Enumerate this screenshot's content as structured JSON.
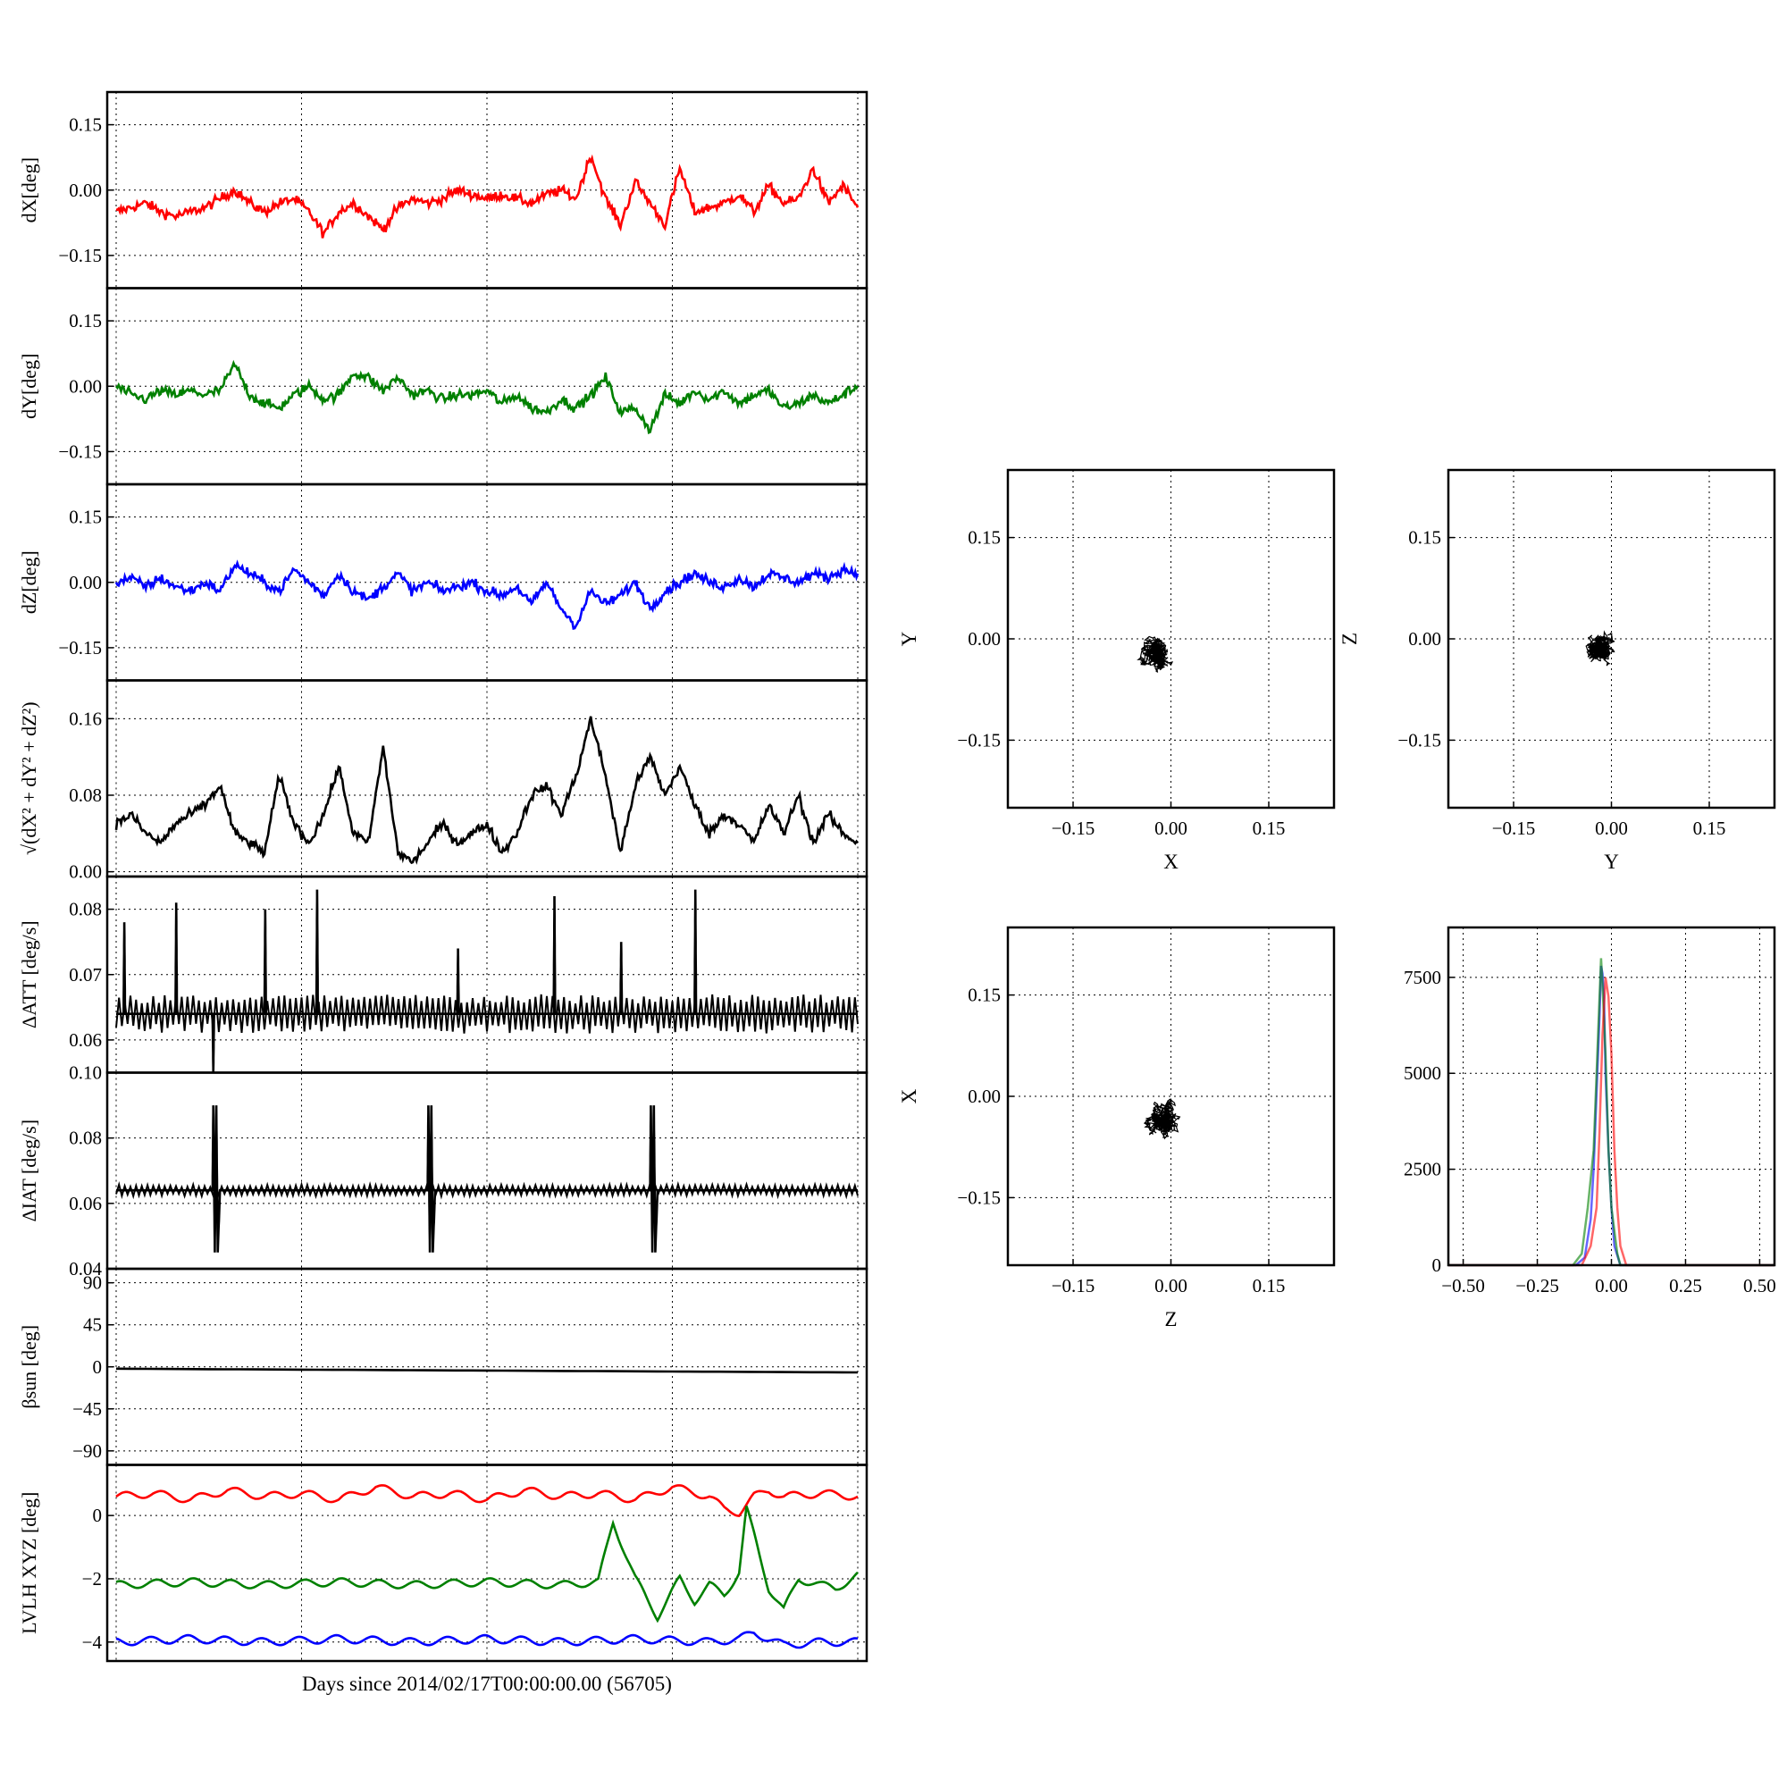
{
  "xlabel_bottom": "Days since 2014/02/17T00:00:00.00 (56705)",
  "colors": {
    "x": "#ff0000",
    "y": "#008000",
    "z": "#0000ff",
    "mag": "#000000"
  },
  "chart_data": [
    {
      "id": "dx",
      "type": "line",
      "ylabel": "dX[deg]",
      "ylim": [
        -0.225,
        0.225
      ],
      "yticks": [
        0.15,
        0.0,
        -0.15
      ],
      "yticklabels": [
        "0.15",
        "0.00",
        "−0.15"
      ],
      "series": [
        {
          "color": "#ff0000",
          "x": [
            0,
            0.02,
            0.04,
            0.06,
            0.08,
            0.1,
            0.12,
            0.14,
            0.16,
            0.18,
            0.2,
            0.22,
            0.24,
            0.26,
            0.28,
            0.3,
            0.32,
            0.34,
            0.36,
            0.38,
            0.4,
            0.42,
            0.44,
            0.46,
            0.48,
            0.5,
            0.52,
            0.54,
            0.56,
            0.58,
            0.6,
            0.62,
            0.64,
            0.66,
            0.68,
            0.7,
            0.72,
            0.74,
            0.76,
            0.78,
            0.8,
            0.82,
            0.84,
            0.86,
            0.88,
            0.9,
            0.92,
            0.94,
            0.96,
            0.98,
            1.0
          ],
          "y": [
            -0.05,
            -0.04,
            -0.03,
            -0.05,
            -0.06,
            -0.05,
            -0.04,
            -0.02,
            0.0,
            -0.03,
            -0.05,
            -0.03,
            -0.02,
            -0.05,
            -0.1,
            -0.05,
            -0.03,
            -0.06,
            -0.09,
            -0.04,
            -0.02,
            -0.03,
            -0.02,
            0.0,
            -0.01,
            -0.02,
            -0.01,
            -0.02,
            -0.03,
            -0.01,
            0.0,
            -0.02,
            0.08,
            -0.02,
            -0.08,
            0.02,
            -0.03,
            -0.08,
            0.05,
            -0.05,
            -0.04,
            -0.03,
            -0.01,
            -0.05,
            0.01,
            -0.03,
            -0.02,
            0.05,
            -0.03,
            0.01,
            -0.04
          ]
        }
      ]
    },
    {
      "id": "dy",
      "type": "line",
      "ylabel": "dY[deg]",
      "ylim": [
        -0.225,
        0.225
      ],
      "yticks": [
        0.15,
        0.0,
        -0.15
      ],
      "yticklabels": [
        "0.15",
        "0.00",
        "−0.15"
      ],
      "series": [
        {
          "color": "#008000",
          "x": [
            0,
            0.02,
            0.04,
            0.06,
            0.08,
            0.1,
            0.12,
            0.14,
            0.16,
            0.18,
            0.2,
            0.22,
            0.24,
            0.26,
            0.28,
            0.3,
            0.32,
            0.34,
            0.36,
            0.38,
            0.4,
            0.42,
            0.44,
            0.46,
            0.48,
            0.5,
            0.52,
            0.54,
            0.56,
            0.58,
            0.6,
            0.62,
            0.64,
            0.66,
            0.68,
            0.7,
            0.72,
            0.74,
            0.76,
            0.78,
            0.8,
            0.82,
            0.84,
            0.86,
            0.88,
            0.9,
            0.92,
            0.94,
            0.96,
            0.98,
            1.0
          ],
          "y": [
            0.0,
            -0.02,
            -0.03,
            -0.01,
            -0.02,
            -0.01,
            -0.02,
            -0.01,
            0.05,
            -0.02,
            -0.04,
            -0.05,
            -0.02,
            0.0,
            -0.03,
            -0.02,
            0.03,
            0.02,
            -0.01,
            0.02,
            -0.02,
            -0.01,
            -0.03,
            -0.02,
            -0.02,
            -0.01,
            -0.04,
            -0.02,
            -0.05,
            -0.06,
            -0.03,
            -0.05,
            -0.02,
            0.02,
            -0.06,
            -0.05,
            -0.1,
            -0.02,
            -0.04,
            -0.01,
            -0.03,
            -0.01,
            -0.04,
            -0.02,
            -0.01,
            -0.05,
            -0.04,
            -0.02,
            -0.04,
            -0.02,
            0.0
          ]
        }
      ]
    },
    {
      "id": "dz",
      "type": "line",
      "ylabel": "dZ[deg]",
      "ylim": [
        -0.225,
        0.225
      ],
      "yticks": [
        0.15,
        0.0,
        -0.15
      ],
      "yticklabels": [
        "0.15",
        "0.00",
        "−0.15"
      ],
      "series": [
        {
          "color": "#0000ff",
          "x": [
            0,
            0.02,
            0.04,
            0.06,
            0.08,
            0.1,
            0.12,
            0.14,
            0.16,
            0.18,
            0.2,
            0.22,
            0.24,
            0.26,
            0.28,
            0.3,
            0.32,
            0.34,
            0.36,
            0.38,
            0.4,
            0.42,
            0.44,
            0.46,
            0.48,
            0.5,
            0.52,
            0.54,
            0.56,
            0.58,
            0.6,
            0.62,
            0.64,
            0.66,
            0.68,
            0.7,
            0.72,
            0.74,
            0.76,
            0.78,
            0.8,
            0.82,
            0.84,
            0.86,
            0.88,
            0.9,
            0.92,
            0.94,
            0.96,
            0.98,
            1.0
          ],
          "y": [
            0.0,
            0.01,
            -0.01,
            0.01,
            -0.01,
            -0.02,
            0.0,
            -0.02,
            0.04,
            0.02,
            0.0,
            -0.02,
            0.03,
            0.0,
            -0.03,
            0.02,
            -0.02,
            -0.04,
            -0.01,
            0.02,
            -0.02,
            0.0,
            -0.02,
            -0.01,
            0.0,
            -0.02,
            -0.03,
            -0.01,
            -0.05,
            0.0,
            -0.06,
            -0.1,
            -0.02,
            -0.05,
            -0.03,
            0.0,
            -0.06,
            -0.02,
            0.0,
            0.02,
            0.0,
            -0.01,
            0.01,
            -0.01,
            0.02,
            0.01,
            0.0,
            0.02,
            0.01,
            0.03,
            0.02
          ]
        }
      ]
    },
    {
      "id": "mag",
      "type": "line",
      "ylabel": "√(dX² + dY² + dZ²)",
      "ylim": [
        -0.005,
        0.2
      ],
      "yticks": [
        0.16,
        0.08,
        0.0
      ],
      "yticklabels": [
        "0.16",
        "0.08",
        "0.00"
      ],
      "series": [
        {
          "color": "#000000",
          "x": [
            0,
            0.02,
            0.04,
            0.06,
            0.08,
            0.1,
            0.12,
            0.14,
            0.16,
            0.18,
            0.2,
            0.22,
            0.24,
            0.26,
            0.28,
            0.3,
            0.32,
            0.34,
            0.36,
            0.38,
            0.4,
            0.42,
            0.44,
            0.46,
            0.48,
            0.5,
            0.52,
            0.54,
            0.56,
            0.58,
            0.6,
            0.62,
            0.64,
            0.66,
            0.68,
            0.7,
            0.72,
            0.74,
            0.76,
            0.78,
            0.8,
            0.82,
            0.84,
            0.86,
            0.88,
            0.9,
            0.92,
            0.94,
            0.96,
            0.98,
            1.0
          ],
          "y": [
            0.05,
            0.06,
            0.04,
            0.03,
            0.05,
            0.06,
            0.07,
            0.09,
            0.04,
            0.03,
            0.02,
            0.1,
            0.05,
            0.03,
            0.06,
            0.11,
            0.04,
            0.03,
            0.13,
            0.02,
            0.01,
            0.03,
            0.05,
            0.03,
            0.04,
            0.05,
            0.02,
            0.04,
            0.08,
            0.09,
            0.06,
            0.1,
            0.16,
            0.1,
            0.02,
            0.09,
            0.12,
            0.08,
            0.11,
            0.07,
            0.04,
            0.06,
            0.05,
            0.03,
            0.07,
            0.04,
            0.08,
            0.03,
            0.06,
            0.04,
            0.03
          ]
        }
      ]
    },
    {
      "id": "datt",
      "type": "line",
      "ylabel": "ΔATT [deg/s]",
      "ylim": [
        0.055,
        0.085
      ],
      "yticks": [
        0.08,
        0.07,
        0.06
      ],
      "yticklabels": [
        "0.08",
        "0.07",
        "0.06"
      ],
      "series": [
        {
          "color": "#000000",
          "x": [
            0,
            0.01,
            0.011,
            0.012,
            0.08,
            0.081,
            0.082,
            0.13,
            0.131,
            0.132,
            0.2,
            0.201,
            0.202,
            0.27,
            0.271,
            0.272,
            0.33,
            0.331,
            0.332,
            0.46,
            0.461,
            0.462,
            0.59,
            0.591,
            0.592,
            0.68,
            0.681,
            0.682,
            0.78,
            0.781,
            0.782,
            0.86,
            0.87,
            1.0
          ],
          "y": [
            0.064,
            0.064,
            0.078,
            0.064,
            0.064,
            0.081,
            0.064,
            0.064,
            0.055,
            0.064,
            0.064,
            0.08,
            0.064,
            0.064,
            0.083,
            0.064,
            0.064,
            0.064,
            0.064,
            0.064,
            0.074,
            0.064,
            0.064,
            0.082,
            0.064,
            0.064,
            0.075,
            0.064,
            0.064,
            0.083,
            0.064,
            0.064,
            0.064,
            0.064
          ]
        }
      ]
    },
    {
      "id": "diat",
      "type": "line",
      "ylabel": "ΔIAT [deg/s]",
      "ylim": [
        0.04,
        0.1
      ],
      "yticks": [
        0.1,
        0.08,
        0.06,
        0.04
      ],
      "yticklabels": [
        "0.10",
        "0.08",
        "0.06",
        "0.04"
      ],
      "series": [
        {
          "color": "#000000",
          "x": [
            0,
            0.13,
            0.131,
            0.133,
            0.135,
            0.137,
            0.14,
            0.42,
            0.421,
            0.423,
            0.425,
            0.427,
            0.43,
            0.72,
            0.721,
            0.723,
            0.725,
            0.727,
            0.73,
            1.0
          ],
          "y": [
            0.064,
            0.064,
            0.09,
            0.045,
            0.09,
            0.045,
            0.064,
            0.064,
            0.09,
            0.045,
            0.09,
            0.045,
            0.064,
            0.064,
            0.09,
            0.045,
            0.09,
            0.045,
            0.064,
            0.064
          ]
        }
      ]
    },
    {
      "id": "beta",
      "type": "line",
      "ylabel": "βsun [deg]",
      "ylim": [
        -105,
        105
      ],
      "yticks": [
        90,
        45,
        0,
        -45,
        -90
      ],
      "yticklabels": [
        "90",
        "45",
        "0",
        "−45",
        "−90"
      ],
      "series": [
        {
          "color": "#000000",
          "x": [
            0,
            0.25,
            0.5,
            0.75,
            1.0
          ],
          "y": [
            -2,
            -3,
            -4,
            -5,
            -6
          ]
        }
      ]
    },
    {
      "id": "lvlh",
      "type": "line",
      "ylabel": "LVLH XYZ [deg]",
      "ylim": [
        -4.6,
        1.6
      ],
      "yticks": [
        0,
        -2,
        -4
      ],
      "yticklabels": [
        "0",
        "−2",
        "−4"
      ],
      "series": [
        {
          "color": "#ff0000",
          "x": [
            0,
            0.05,
            0.1,
            0.15,
            0.2,
            0.25,
            0.3,
            0.35,
            0.4,
            0.45,
            0.5,
            0.55,
            0.6,
            0.65,
            0.7,
            0.75,
            0.8,
            0.82,
            0.84,
            0.86,
            0.88,
            0.9,
            0.95,
            1.0
          ],
          "y": [
            0.6,
            0.7,
            0.5,
            0.8,
            0.6,
            0.7,
            0.5,
            0.9,
            0.6,
            0.7,
            0.5,
            0.8,
            0.6,
            0.7,
            0.5,
            0.9,
            0.6,
            0.2,
            0.1,
            0.6,
            0.8,
            0.6,
            0.7,
            0.6
          ]
        },
        {
          "color": "#008000",
          "x": [
            0,
            0.1,
            0.2,
            0.3,
            0.4,
            0.5,
            0.6,
            0.65,
            0.67,
            0.7,
            0.73,
            0.76,
            0.78,
            0.8,
            0.82,
            0.84,
            0.85,
            0.86,
            0.88,
            0.9,
            0.92,
            0.95,
            0.97,
            1.0
          ],
          "y": [
            -2.2,
            -2.1,
            -2.2,
            -2.1,
            -2.2,
            -2.1,
            -2.2,
            -2.1,
            -0.2,
            -2.0,
            -3.2,
            -2.0,
            -2.7,
            -2.2,
            -2.5,
            -1.8,
            0.2,
            -0.6,
            -2.3,
            -3.0,
            -2.0,
            -2.2,
            -2.3,
            -1.9
          ]
        },
        {
          "color": "#0000ff",
          "x": [
            0,
            0.1,
            0.2,
            0.3,
            0.4,
            0.5,
            0.6,
            0.7,
            0.8,
            0.84,
            0.86,
            0.88,
            0.9,
            0.95,
            1.0
          ],
          "y": [
            -4.0,
            -3.9,
            -4.0,
            -3.9,
            -4.0,
            -3.9,
            -4.0,
            -3.9,
            -4.0,
            -3.9,
            -3.7,
            -3.9,
            -4.1,
            -4.0,
            -4.0
          ]
        }
      ]
    },
    {
      "id": "xy",
      "type": "scatter",
      "xlabel": "X",
      "ylabel": "Y",
      "xlim": [
        -0.25,
        0.25
      ],
      "ylim": [
        -0.25,
        0.25
      ],
      "ticks": [
        -0.15,
        0.0,
        0.15
      ],
      "ticklabels": [
        "−0.15",
        "0.00",
        "0.15"
      ],
      "center": [
        -0.02,
        -0.02
      ],
      "spread": [
        0.05,
        0.04
      ]
    },
    {
      "id": "yz",
      "type": "scatter",
      "xlabel": "Y",
      "ylabel": "Z",
      "xlim": [
        -0.25,
        0.25
      ],
      "ylim": [
        -0.25,
        0.25
      ],
      "ticks": [
        -0.15,
        0.0,
        0.15
      ],
      "ticklabels": [
        "−0.15",
        "0.00",
        "0.15"
      ],
      "center": [
        -0.02,
        -0.01
      ],
      "spread": [
        0.035,
        0.04
      ]
    },
    {
      "id": "zx",
      "type": "scatter",
      "xlabel": "Z",
      "ylabel": "X",
      "xlim": [
        -0.25,
        0.25
      ],
      "ylim": [
        -0.25,
        0.25
      ],
      "ticks": [
        -0.15,
        0.0,
        0.15
      ],
      "ticklabels": [
        "−0.15",
        "0.00",
        "0.15"
      ],
      "center": [
        -0.01,
        -0.03
      ],
      "spread": [
        0.045,
        0.045
      ]
    },
    {
      "id": "hist",
      "type": "histogram",
      "xlim": [
        -0.55,
        0.55
      ],
      "ylim": [
        0,
        8800
      ],
      "xticks": [
        -0.5,
        -0.25,
        0.0,
        0.25,
        0.5
      ],
      "xticklabels": [
        "−0.50",
        "−0.25",
        "0.00",
        "0.25",
        "0.50"
      ],
      "yticks": [
        0,
        2500,
        5000,
        7500
      ],
      "yticklabels": [
        "0",
        "2500",
        "5000",
        "7500"
      ],
      "series": [
        {
          "color": "#0000ff",
          "x": [
            -0.12,
            -0.09,
            -0.07,
            -0.06,
            -0.05,
            -0.04,
            -0.035,
            -0.03,
            -0.025,
            -0.02,
            -0.01,
            0.0,
            0.01,
            0.03
          ],
          "y": [
            0,
            200,
            1200,
            2500,
            4500,
            6500,
            7800,
            7600,
            7000,
            5000,
            3000,
            1500,
            500,
            0
          ]
        },
        {
          "color": "#008000",
          "x": [
            -0.13,
            -0.1,
            -0.08,
            -0.06,
            -0.05,
            -0.04,
            -0.035,
            -0.03,
            -0.02,
            -0.01,
            0.0,
            0.02,
            0.03
          ],
          "y": [
            0,
            300,
            1500,
            3000,
            5000,
            7000,
            8000,
            7300,
            5500,
            3000,
            1500,
            300,
            0
          ]
        },
        {
          "color": "#ff0000",
          "x": [
            -0.1,
            -0.07,
            -0.05,
            -0.04,
            -0.03,
            -0.02,
            -0.01,
            0.0,
            0.01,
            0.02,
            0.03,
            0.05
          ],
          "y": [
            0,
            500,
            1500,
            3500,
            6000,
            7500,
            7000,
            5500,
            3000,
            1500,
            500,
            0
          ]
        }
      ]
    }
  ]
}
